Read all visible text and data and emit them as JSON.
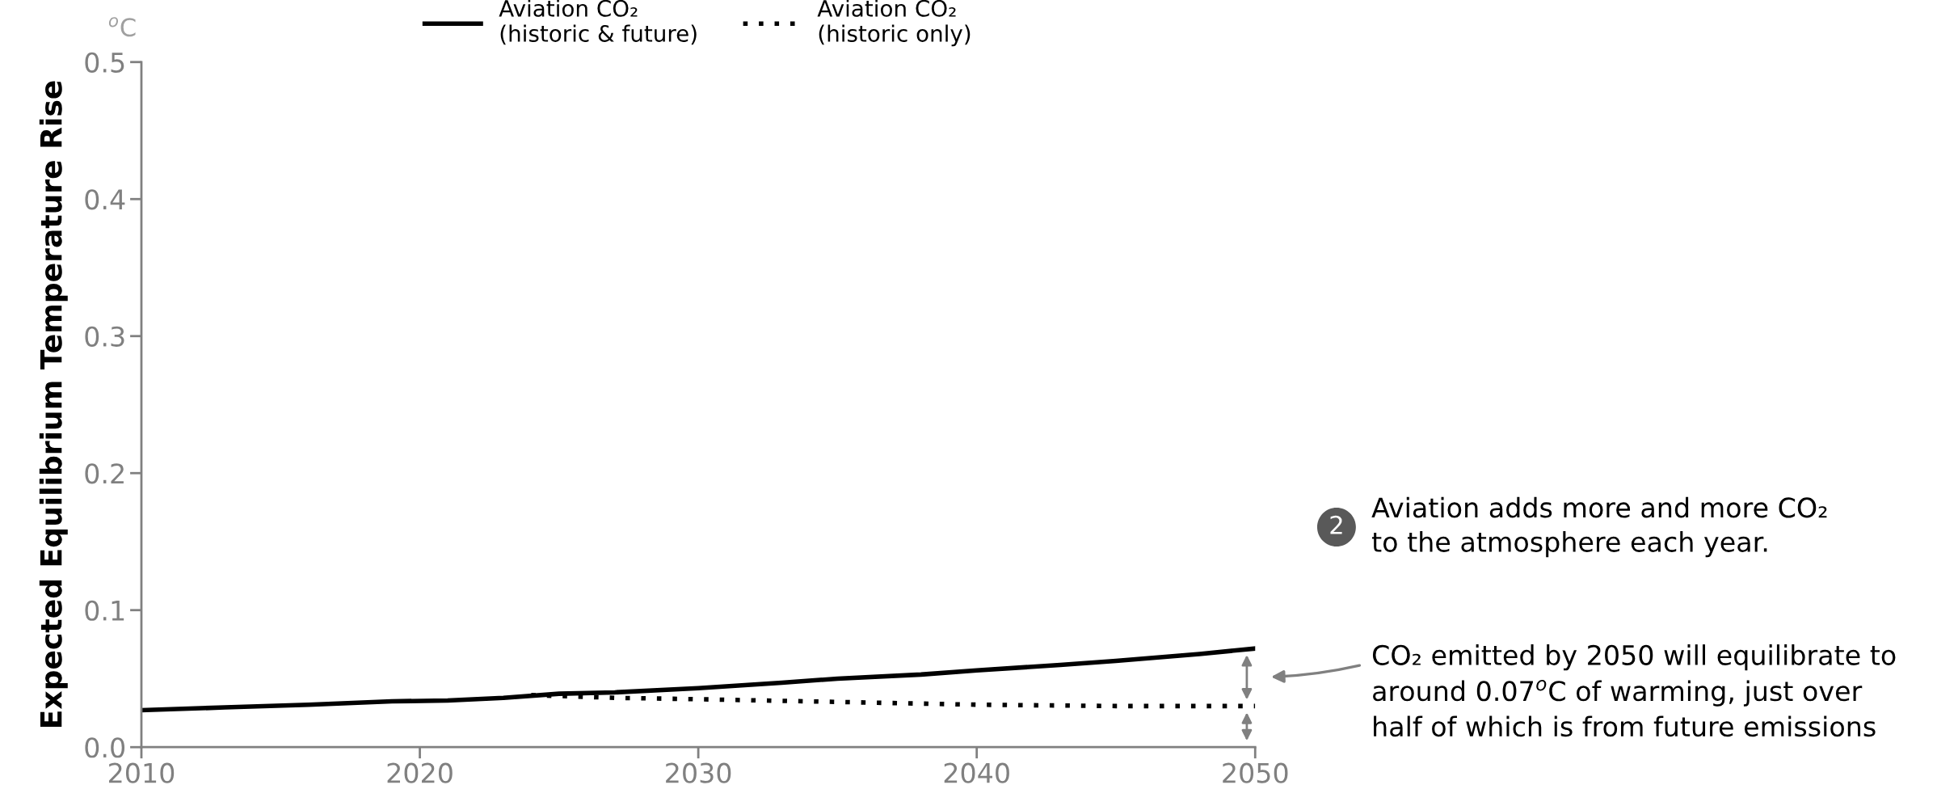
{
  "chart_data": {
    "type": "line",
    "ylabel": "Expected Equilibrium Temperature Rise",
    "xlim": [
      2010,
      2050
    ],
    "xticks": [
      2010,
      2020,
      2030,
      2040,
      2050
    ],
    "ylim": [
      0,
      0.5
    ],
    "yticks": [
      {
        "value": 0,
        "label": "0.0"
      },
      0.1,
      0.2,
      0.3,
      0.4,
      0.5
    ],
    "grid": false,
    "legend": "top",
    "series": [
      {
        "name": "Aviation CO₂\n(historic & future)",
        "color": "#000000",
        "line_style": "solid",
        "x": [
          2010,
          2013,
          2016,
          2019,
          2021,
          2023,
          2025,
          2027,
          2030,
          2033,
          2035,
          2038,
          2040,
          2043,
          2045,
          2048,
          2050
        ],
        "values": [
          0.027,
          0.029,
          0.031,
          0.0335,
          0.034,
          0.036,
          0.039,
          0.04,
          0.043,
          0.047,
          0.05,
          0.053,
          0.056,
          0.06,
          0.063,
          0.068,
          0.072
        ]
      },
      {
        "name": "Aviation CO₂\n(historic only)",
        "color": "#000000",
        "line_style": "dotted",
        "x": [
          2024,
          2027,
          2030,
          2035,
          2040,
          2045,
          2050
        ],
        "values": [
          0.038,
          0.036,
          0.035,
          0.033,
          0.031,
          0.03,
          0.03
        ]
      }
    ],
    "annotations": [
      "$^{o}$C",
      "2",
      "Aviation adds more and more CO₂\nto the atmosphere each year.",
      "CO₂ emitted by 2050 will equilibrate to\naround 0.07$^{o}$C of warming, just over\nhalf of which is from future emissions"
    ]
  }
}
